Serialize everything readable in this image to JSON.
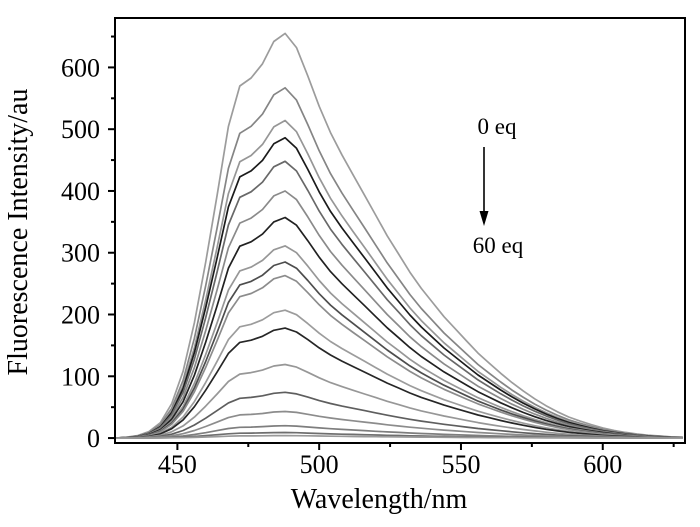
{
  "figure": {
    "background": "#ffffff",
    "frame_color": "#000000",
    "text_color": "#000000"
  },
  "chart_data": {
    "type": "line",
    "title": "",
    "xlabel": "Wavelength/nm",
    "ylabel": "Fluorescence Intensity/au",
    "xlim": [
      428,
      629
    ],
    "ylim": [
      -8,
      680
    ],
    "grid": false,
    "legend": "none",
    "peak_wavelength_nm": 487,
    "x_major_ticks": [
      450,
      500,
      550,
      600
    ],
    "x_minor_ticks": [
      475,
      525,
      575,
      625
    ],
    "y_major_ticks": [
      0,
      100,
      200,
      300,
      400,
      500,
      600
    ],
    "y_minor_ticks": [
      50,
      150,
      250,
      350,
      450,
      550,
      650
    ],
    "wavelengths": [
      428,
      432,
      436,
      440,
      444,
      448,
      452,
      456,
      460,
      464,
      468,
      472,
      476,
      480,
      484,
      488,
      492,
      496,
      500,
      504,
      508,
      512,
      516,
      520,
      524,
      528,
      532,
      536,
      540,
      544,
      548,
      552,
      556,
      560,
      564,
      568,
      572,
      576,
      580,
      584,
      588,
      592,
      596,
      600,
      604,
      608,
      612,
      616,
      620,
      624,
      628
    ],
    "normalized_shape": [
      0.0,
      0.002,
      0.006,
      0.016,
      0.038,
      0.085,
      0.165,
      0.285,
      0.435,
      0.6,
      0.77,
      0.87,
      0.89,
      0.925,
      0.98,
      1.0,
      0.965,
      0.895,
      0.82,
      0.755,
      0.7,
      0.65,
      0.6,
      0.55,
      0.5,
      0.455,
      0.41,
      0.37,
      0.335,
      0.3,
      0.27,
      0.24,
      0.21,
      0.185,
      0.16,
      0.137,
      0.116,
      0.097,
      0.08,
      0.065,
      0.052,
      0.042,
      0.033,
      0.025,
      0.019,
      0.014,
      0.01,
      0.007,
      0.005,
      0.003,
      0.002
    ],
    "series": [
      {
        "peak": 655,
        "color": "#9c9c9c"
      },
      {
        "peak": 567,
        "color": "#858585"
      },
      {
        "peak": 514,
        "color": "#969696"
      },
      {
        "peak": 486,
        "color": "#1b1b1b"
      },
      {
        "peak": 448,
        "color": "#686868"
      },
      {
        "peak": 400,
        "color": "#8a8a8a"
      },
      {
        "peak": 357,
        "color": "#212121"
      },
      {
        "peak": 311,
        "color": "#979797"
      },
      {
        "peak": 285,
        "color": "#4d4d4d"
      },
      {
        "peak": 263,
        "color": "#8c8c8c"
      },
      {
        "peak": 207,
        "color": "#9c9c9c"
      },
      {
        "peak": 178,
        "color": "#262626"
      },
      {
        "peak": 119,
        "color": "#979797"
      },
      {
        "peak": 74,
        "color": "#5e5e5e"
      },
      {
        "peak": 43,
        "color": "#8c8c8c"
      },
      {
        "peak": 20,
        "color": "#7e7e7e"
      },
      {
        "peak": 9,
        "color": "#6e6e6e"
      },
      {
        "peak": 4,
        "color": "#999999"
      }
    ],
    "annotations": {
      "start_label": "0 eq",
      "end_label": "60 eq",
      "arrow_direction": "down"
    }
  }
}
